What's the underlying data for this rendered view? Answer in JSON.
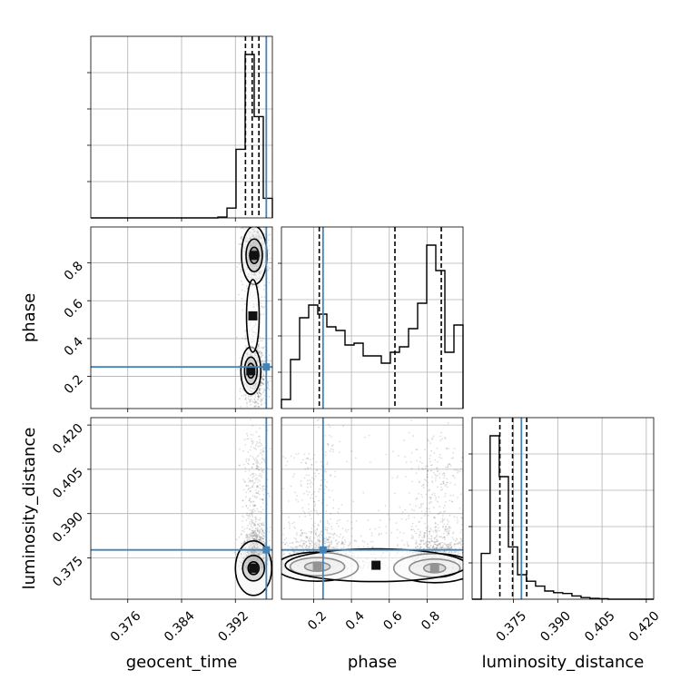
{
  "chart_data": {
    "type": "corner",
    "title": "",
    "parameters": [
      "geocent_time",
      "phase",
      "luminosity_distance"
    ],
    "truths": {
      "geocent_time": 0.3966,
      "phase": 0.25,
      "luminosity_distance": 0.3777
    },
    "colors": {
      "truth": "#4682b4",
      "hist": "#000000",
      "grid": "#b0b0b0",
      "points": "#000000"
    },
    "grid": true,
    "ranges": {
      "geocent_time": [
        0.3705,
        0.3975
      ],
      "phase": [
        0.03,
        0.99
      ],
      "luminosity_distance": [
        0.361,
        0.4225
      ]
    },
    "ticks": {
      "geocent_time": {
        "values": [
          0.376,
          0.384,
          0.392
        ],
        "labels": [
          "0.376",
          "0.384",
          "0.392"
        ]
      },
      "phase": {
        "values": [
          0.2,
          0.4,
          0.6,
          0.8
        ],
        "labels": [
          "0.2",
          "0.4",
          "0.6",
          "0.8"
        ]
      },
      "luminosity_distance": {
        "values": [
          0.375,
          0.39,
          0.405,
          0.42
        ],
        "labels": [
          "0.375",
          "0.390",
          "0.405",
          "0.420"
        ]
      }
    },
    "marginals": {
      "geocent_time": {
        "bin_edges": [
          0.3705,
          0.37185,
          0.3732,
          0.37455,
          0.3759,
          0.37725,
          0.3786,
          0.37995,
          0.3813,
          0.38265,
          0.384,
          0.38535,
          0.3867,
          0.38805,
          0.3894,
          0.39075,
          0.3921,
          0.39345,
          0.3948,
          0.39615,
          0.3975
        ],
        "counts": [
          0,
          0,
          0,
          0,
          0,
          0,
          0,
          0,
          0,
          0,
          0,
          0,
          0,
          0,
          0.005,
          0.06,
          0.42,
          1.0,
          0.62,
          0.12
        ],
        "quantiles": [
          0.3935,
          0.3945,
          0.3955
        ]
      },
      "phase": {
        "bin_edges": [
          0.03,
          0.078,
          0.126,
          0.174,
          0.222,
          0.27,
          0.318,
          0.366,
          0.414,
          0.462,
          0.51,
          0.558,
          0.606,
          0.654,
          0.702,
          0.75,
          0.798,
          0.846,
          0.894,
          0.942,
          0.99
        ],
        "counts": [
          0.05,
          0.27,
          0.5,
          0.57,
          0.52,
          0.45,
          0.43,
          0.35,
          0.36,
          0.29,
          0.29,
          0.25,
          0.31,
          0.34,
          0.44,
          0.58,
          0.9,
          0.76,
          0.31,
          0.46
        ],
        "quantiles": [
          0.23,
          0.63,
          0.875
        ]
      },
      "luminosity_distance": {
        "bin_edges": [
          0.361,
          0.3641,
          0.3671,
          0.3702,
          0.3733,
          0.3764,
          0.3794,
          0.3825,
          0.3856,
          0.3886,
          0.3917,
          0.3948,
          0.3979,
          0.4009,
          0.404,
          0.4071,
          0.4101,
          0.4132,
          0.4163,
          0.4194,
          0.4225
        ],
        "counts": [
          0,
          0.28,
          1.0,
          0.75,
          0.32,
          0.15,
          0.11,
          0.08,
          0.05,
          0.04,
          0.035,
          0.02,
          0.01,
          0.005,
          0.003,
          0,
          0,
          0,
          0,
          0
        ],
        "quantiles": [
          0.3704,
          0.3747,
          0.3795
        ]
      }
    }
  }
}
